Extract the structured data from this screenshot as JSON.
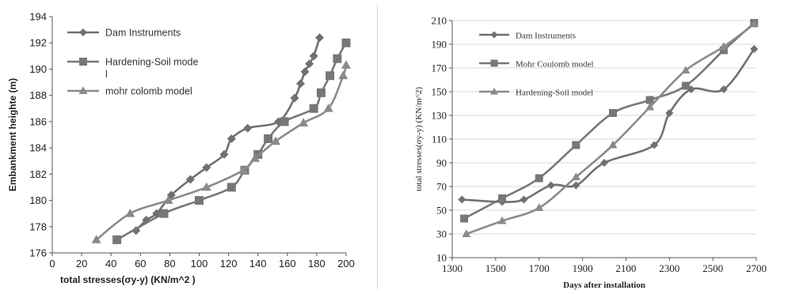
{
  "chart_data": [
    {
      "type": "line",
      "title": "",
      "xlabel": "total stresses(σy-y) (KN/m^2 )",
      "ylabel": "Embankment heighte (m)",
      "xlim": [
        0,
        200
      ],
      "ylim": [
        176,
        194
      ],
      "xticks": [
        0,
        20,
        40,
        60,
        80,
        100,
        120,
        140,
        160,
        180,
        200
      ],
      "yticks": [
        176,
        178,
        180,
        182,
        184,
        186,
        188,
        190,
        192,
        194
      ],
      "grid": false,
      "legend_position": "top-left",
      "legend_labels": [
        "Dam Instruments",
        "Hardening-Soil model",
        "mohr colomb model"
      ],
      "series": [
        {
          "name": "Dam Instruments",
          "marker": "diamond",
          "color": "#707070",
          "points": [
            [
              57,
              177.7
            ],
            [
              64,
              178.5
            ],
            [
              71,
              179
            ],
            [
              81,
              180.4
            ],
            [
              94,
              181.6
            ],
            [
              105,
              182.5
            ],
            [
              117,
              183.5
            ],
            [
              122,
              184.7
            ],
            [
              133,
              185.5
            ],
            [
              154,
              186
            ],
            [
              165,
              187.8
            ],
            [
              169,
              188.9
            ],
            [
              172,
              189.8
            ],
            [
              175,
              190.4
            ],
            [
              178,
              191
            ],
            [
              182,
              192.4
            ]
          ]
        },
        {
          "name": "Hardening-Soil model",
          "marker": "square",
          "color": "#777777",
          "points": [
            [
              44,
              177
            ],
            [
              76,
              179
            ],
            [
              100,
              180
            ],
            [
              122,
              181
            ],
            [
              131,
              182.3
            ],
            [
              140,
              183.5
            ],
            [
              147,
              184.7
            ],
            [
              158,
              186
            ],
            [
              178,
              187
            ],
            [
              183,
              188.2
            ],
            [
              189,
              189.5
            ],
            [
              194,
              190.8
            ],
            [
              200,
              192
            ]
          ]
        },
        {
          "name": "mohr colomb model",
          "marker": "triangle",
          "color": "#8a8a8a",
          "points": [
            [
              30,
              177
            ],
            [
              53,
              179
            ],
            [
              79,
              180
            ],
            [
              105,
              181
            ],
            [
              130,
              182.3
            ],
            [
              138,
              183.2
            ],
            [
              152,
              184.5
            ],
            [
              171,
              185.9
            ],
            [
              188,
              187
            ],
            [
              198,
              189.5
            ],
            [
              200,
              190.3
            ]
          ]
        }
      ]
    },
    {
      "type": "line",
      "title": "",
      "xlabel": "Days after installation",
      "ylabel": "total stresses(σy-y) (KN/m^2)",
      "xlim": [
        1300,
        2700
      ],
      "ylim": [
        10,
        210
      ],
      "xticks": [
        1300,
        1500,
        1700,
        1900,
        2100,
        2300,
        2500,
        2700
      ],
      "yticks": [
        10,
        30,
        50,
        70,
        90,
        110,
        130,
        150,
        170,
        190,
        210
      ],
      "grid": true,
      "legend_position": "top-left",
      "legend_labels": [
        "Dam Instruments",
        "Mohr Coulomb model",
        "Hardening-Soil model"
      ],
      "series": [
        {
          "name": "Dam Instruments",
          "marker": "diamond",
          "color": "#707070",
          "points": [
            [
              1345,
              59
            ],
            [
              1530,
              57
            ],
            [
              1630,
              59
            ],
            [
              1755,
              71
            ],
            [
              1870,
              71
            ],
            [
              2000,
              90
            ],
            [
              2230,
              105
            ],
            [
              2300,
              132
            ],
            [
              2400,
              152
            ],
            [
              2550,
              152
            ],
            [
              2690,
              186
            ]
          ]
        },
        {
          "name": "Mohr Coulomb model",
          "marker": "square",
          "color": "#777777",
          "points": [
            [
              1355,
              43
            ],
            [
              1530,
              60
            ],
            [
              1700,
              77
            ],
            [
              1870,
              105
            ],
            [
              2040,
              132
            ],
            [
              2210,
              143
            ],
            [
              2375,
              155
            ],
            [
              2550,
              185
            ],
            [
              2690,
              208
            ]
          ]
        },
        {
          "name": "Hardening-Soil model",
          "marker": "triangle",
          "color": "#8a8a8a",
          "points": [
            [
              1365,
              30
            ],
            [
              1530,
              41
            ],
            [
              1700,
              52
            ],
            [
              1870,
              78
            ],
            [
              2040,
              105
            ],
            [
              2210,
              137
            ],
            [
              2375,
              168
            ],
            [
              2550,
              188
            ],
            [
              2690,
              207
            ]
          ]
        }
      ]
    }
  ]
}
